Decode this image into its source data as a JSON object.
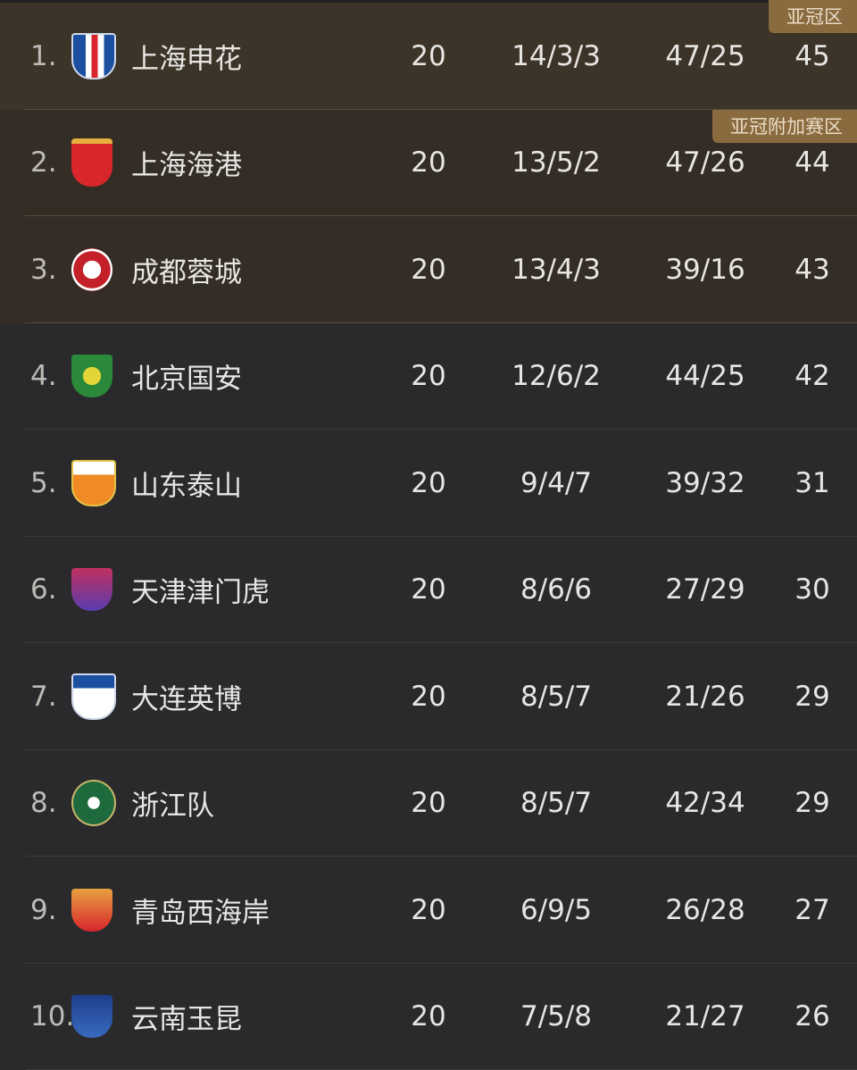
{
  "zones": {
    "acl": "亚冠区",
    "acl_playoff": "亚冠附加赛区"
  },
  "colors": {
    "acl_row": "#3c3429",
    "playoff_row": "#332d26",
    "default_row": "#2a2a2c",
    "badge": "#8a6a3f"
  },
  "rows": [
    {
      "rank": "1.",
      "team": "上海申花",
      "logo": "shanghai-shenhua-crest",
      "played": "20",
      "wdl": "14/3/3",
      "goals": "47/25",
      "pts": "45"
    },
    {
      "rank": "2.",
      "team": "上海海港",
      "logo": "shanghai-port-crest",
      "played": "20",
      "wdl": "13/5/2",
      "goals": "47/26",
      "pts": "44"
    },
    {
      "rank": "3.",
      "team": "成都蓉城",
      "logo": "chengdu-rongcheng-crest",
      "played": "20",
      "wdl": "13/4/3",
      "goals": "39/16",
      "pts": "43"
    },
    {
      "rank": "4.",
      "team": "北京国安",
      "logo": "beijing-guoan-crest",
      "played": "20",
      "wdl": "12/6/2",
      "goals": "44/25",
      "pts": "42"
    },
    {
      "rank": "5.",
      "team": "山东泰山",
      "logo": "shandong-taishan-crest",
      "played": "20",
      "wdl": "9/4/7",
      "goals": "39/32",
      "pts": "31"
    },
    {
      "rank": "6.",
      "team": "天津津门虎",
      "logo": "tianjin-jinmen-tiger-crest",
      "played": "20",
      "wdl": "8/6/6",
      "goals": "27/29",
      "pts": "30"
    },
    {
      "rank": "7.",
      "team": "大连英博",
      "logo": "dalian-yingbo-crest",
      "played": "20",
      "wdl": "8/5/7",
      "goals": "21/26",
      "pts": "29"
    },
    {
      "rank": "8.",
      "team": "浙江队",
      "logo": "zhejiang-crest",
      "played": "20",
      "wdl": "8/5/7",
      "goals": "42/34",
      "pts": "29"
    },
    {
      "rank": "9.",
      "team": "青岛西海岸",
      "logo": "qingdao-west-coast-crest",
      "played": "20",
      "wdl": "6/9/5",
      "goals": "26/28",
      "pts": "27"
    },
    {
      "rank": "10.",
      "team": "云南玉昆",
      "logo": "yunnan-yukun-crest",
      "played": "20",
      "wdl": "7/5/8",
      "goals": "21/27",
      "pts": "26"
    }
  ]
}
